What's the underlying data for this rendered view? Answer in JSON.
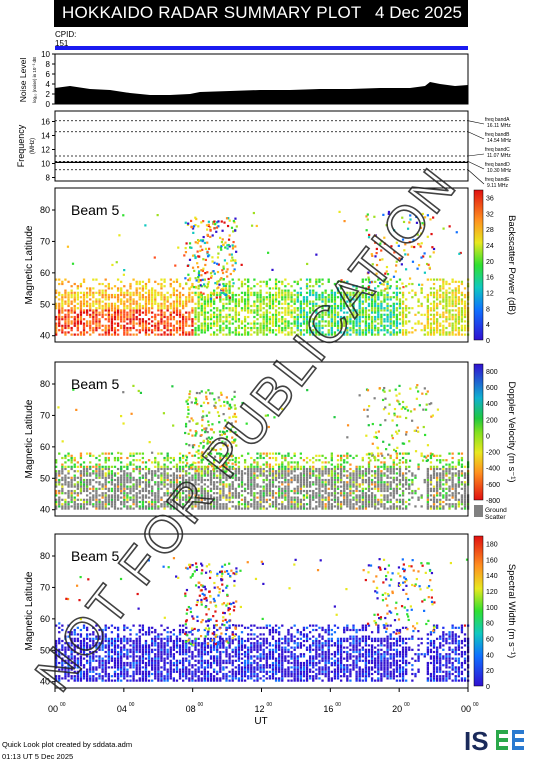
{
  "header": {
    "title": "HOKKAIDO RADAR SUMMARY PLOT",
    "date": "4 Dec 2025"
  },
  "cpid": {
    "label": "CPID:",
    "value": "151"
  },
  "noise": {
    "ylabel": "Noise Level",
    "sublabel": "log₁₀ (noise) in 10⁻³ dB",
    "ticks": [
      "0",
      "2",
      "4",
      "6",
      "8",
      "10"
    ]
  },
  "frequency": {
    "ylabel": "Frequency",
    "unit": "(MHz)",
    "ticks": [
      "8",
      "10",
      "12",
      "14",
      "16"
    ],
    "bands": [
      {
        "label": "freq bandA",
        "value": "16.11 MHz",
        "mhz": 16.11
      },
      {
        "label": "freq bandB",
        "value": "14.54 MHz",
        "mhz": 14.54
      },
      {
        "label": "freq bandC",
        "value": "11.07 MHz",
        "mhz": 11.07
      },
      {
        "label": "freq bandD",
        "value": "10.30 MHz",
        "mhz": 10.3
      },
      {
        "label": "freq bandE",
        "value": "9.11 MHz",
        "mhz": 9.11
      }
    ]
  },
  "panels": [
    {
      "beam": "Beam 5",
      "ylabel": "Magnetic Latitude",
      "cblabel": "Backscatter Power (dB)",
      "ticks": [
        "0",
        "4",
        "8",
        "12",
        "16",
        "20",
        "24",
        "28",
        "32",
        "36"
      ]
    },
    {
      "beam": "Beam 5",
      "ylabel": "Magnetic Latitude",
      "cblabel": "Doppler Velocity (m s⁻¹)",
      "ticks": [
        "-800",
        "-600",
        "-400",
        "-200",
        "0",
        "200",
        "400",
        "600",
        "800"
      ],
      "ground": "Ground",
      "scatter": "Scatter"
    },
    {
      "beam": "Beam 5",
      "ylabel": "Magnetic Latitude",
      "cblabel": "Spectral Width (m s⁻¹)",
      "ticks": [
        "0",
        "20",
        "40",
        "60",
        "80",
        "100",
        "120",
        "140",
        "160",
        "180"
      ]
    }
  ],
  "lat_ticks": [
    "40",
    "50",
    "60",
    "70",
    "80"
  ],
  "x_axis": {
    "label": "UT",
    "ticks": [
      "00",
      "04",
      "08",
      "12",
      "16",
      "20",
      "00"
    ],
    "sup": "00"
  },
  "footer": {
    "line1": "Quick Look plot created by sddata.adm",
    "line2": "01:13 UT  5 Dec 2025"
  },
  "logo": "ISEE",
  "watermark": "NOT FOR PUBLICATION",
  "colors": {
    "title_bg": "#000000",
    "cpid_bar": "#1a1af0",
    "ground_scatter": "#808080"
  },
  "chart_data": [
    {
      "type": "area",
      "name": "noise",
      "ylim": [
        0,
        10
      ],
      "xlim": [
        0,
        24
      ],
      "values_approx": [
        3,
        2.5,
        2.5,
        2,
        1.5,
        1.5,
        1.5,
        1.8,
        2,
        2,
        2.5,
        2.5,
        2.5,
        2.5,
        3,
        3.2,
        3.5,
        4
      ]
    },
    {
      "type": "heatmap",
      "name": "backscatter_power",
      "clim": [
        0,
        40
      ],
      "ylim": [
        38,
        87
      ],
      "xlim": [
        0,
        24
      ]
    },
    {
      "type": "heatmap",
      "name": "doppler_velocity",
      "clim": [
        -900,
        900
      ],
      "ylim": [
        38,
        87
      ],
      "xlim": [
        0,
        24
      ]
    },
    {
      "type": "heatmap",
      "name": "spectral_width",
      "clim": [
        0,
        190
      ],
      "ylim": [
        38,
        87
      ],
      "xlim": [
        0,
        24
      ]
    }
  ]
}
